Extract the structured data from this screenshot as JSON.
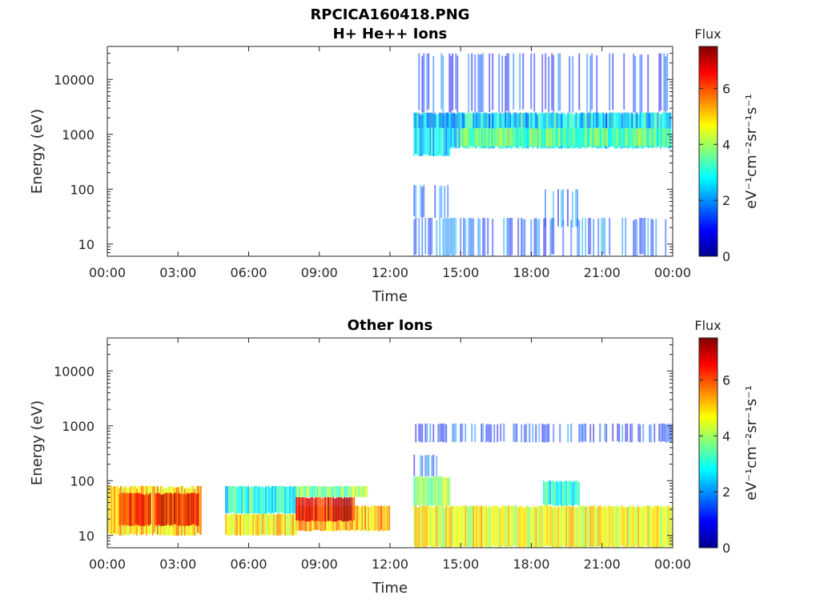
{
  "figure": {
    "title": "RPCICA160418.PNG",
    "colormap": "jet",
    "colors": {
      "axis": "#262626",
      "background": "#ffffff"
    }
  },
  "chart_data": [
    {
      "type": "heatmap",
      "title": "H+ He++ Ions",
      "xlabel": "Time",
      "ylabel": "Energy (eV)",
      "y_scale": "log",
      "xlim": [
        "00:00",
        "24:00"
      ],
      "ylim": [
        6,
        40000
      ],
      "x_ticks": [
        "00:00",
        "03:00",
        "06:00",
        "09:00",
        "12:00",
        "15:00",
        "18:00",
        "21:00",
        "00:00"
      ],
      "y_ticks": [
        "10",
        "100",
        "1000",
        "10000"
      ],
      "colorbar": {
        "title": "Flux",
        "label": "eV⁻¹cm⁻²sr⁻¹s⁻¹",
        "range": [
          0,
          7.5
        ],
        "ticks": [
          "0",
          "2",
          "4",
          "6"
        ]
      },
      "regions": [
        {
          "t_start": 13.0,
          "t_end": 14.5,
          "e_low": 400,
          "e_high": 2500,
          "flux": 2.6
        },
        {
          "t_start": 14.5,
          "t_end": 23.9,
          "e_low": 550,
          "e_high": 2500,
          "flux": 2.8
        },
        {
          "t_start": 15.0,
          "t_end": 23.9,
          "e_low": 600,
          "e_high": 1300,
          "flux": 3.6
        },
        {
          "t_start": 13.0,
          "t_end": 23.9,
          "e_low": 1300,
          "e_high": 2500,
          "flux": 1.7
        },
        {
          "t_start": 13.0,
          "t_end": 23.9,
          "e_low": 6,
          "e_high": 30,
          "flux": 1.6
        },
        {
          "t_start": 13.0,
          "t_end": 14.5,
          "e_low": 30,
          "e_high": 120,
          "flux": 1.4
        },
        {
          "t_start": 18.5,
          "t_end": 20.0,
          "e_low": 20,
          "e_high": 100,
          "flux": 1.5
        },
        {
          "t_start": 13.0,
          "t_end": 23.9,
          "e_low": 2500,
          "e_high": 30000,
          "flux": 1.3
        }
      ]
    },
    {
      "type": "heatmap",
      "title": "Other Ions",
      "xlabel": "Time",
      "ylabel": "Energy (eV)",
      "y_scale": "log",
      "xlim": [
        "00:00",
        "24:00"
      ],
      "ylim": [
        6,
        40000
      ],
      "x_ticks": [
        "00:00",
        "03:00",
        "06:00",
        "09:00",
        "12:00",
        "15:00",
        "18:00",
        "21:00",
        "00:00"
      ],
      "y_ticks": [
        "10",
        "100",
        "1000",
        "10000"
      ],
      "colorbar": {
        "title": "Flux",
        "label": "eV⁻¹cm⁻²sr⁻¹s⁻¹",
        "range": [
          0,
          7.5
        ],
        "ticks": [
          "0",
          "2",
          "4",
          "6"
        ]
      },
      "regions": [
        {
          "t_start": 0.0,
          "t_end": 4.0,
          "e_low": 10,
          "e_high": 80,
          "flux": 5.0
        },
        {
          "t_start": 0.5,
          "t_end": 1.8,
          "e_low": 15,
          "e_high": 60,
          "flux": 6.4
        },
        {
          "t_start": 2.0,
          "t_end": 3.9,
          "e_low": 15,
          "e_high": 60,
          "flux": 6.6
        },
        {
          "t_start": 5.0,
          "t_end": 8.0,
          "e_low": 10,
          "e_high": 25,
          "flux": 4.8
        },
        {
          "t_start": 5.0,
          "t_end": 8.0,
          "e_low": 25,
          "e_high": 80,
          "flux": 3.0
        },
        {
          "t_start": 8.0,
          "t_end": 12.0,
          "e_low": 12,
          "e_high": 35,
          "flux": 5.2
        },
        {
          "t_start": 8.0,
          "t_end": 10.5,
          "e_low": 18,
          "e_high": 50,
          "flux": 6.7
        },
        {
          "t_start": 8.0,
          "t_end": 11.0,
          "e_low": 50,
          "e_high": 80,
          "flux": 3.8
        },
        {
          "t_start": 13.0,
          "t_end": 24.0,
          "e_low": 6,
          "e_high": 35,
          "flux": 4.6
        },
        {
          "t_start": 13.0,
          "t_end": 14.5,
          "e_low": 35,
          "e_high": 120,
          "flux": 3.8
        },
        {
          "t_start": 13.0,
          "t_end": 14.0,
          "e_low": 120,
          "e_high": 300,
          "flux": 1.6
        },
        {
          "t_start": 18.5,
          "t_end": 20.0,
          "e_low": 35,
          "e_high": 100,
          "flux": 3.0
        },
        {
          "t_start": 13.0,
          "t_end": 24.0,
          "e_low": 500,
          "e_high": 1100,
          "flux": 1.3
        }
      ]
    }
  ]
}
